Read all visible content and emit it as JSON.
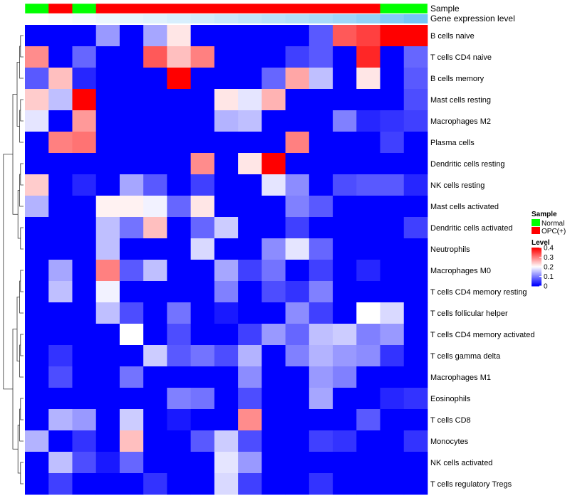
{
  "chart_data": {
    "type": "heatmap",
    "annotation_tracks": [
      "Sample",
      "Gene expression level"
    ],
    "rows": [
      "B cells naive",
      "T cells CD4 naive",
      "B cells memory",
      "Mast cells resting",
      "Macrophages M2",
      "Plasma cells",
      "Dendritic cells resting",
      "NK cells resting",
      "Mast cells activated",
      "Dendritic cells activated",
      "Neutrophils",
      "Macrophages M0",
      "T cells CD4 memory resting",
      "T cells follicular helper",
      "T cells CD4 memory activated",
      "T cells gamma delta",
      "Macrophages M1",
      "Eosinophils",
      "T cells CD8",
      "Monocytes",
      "NK cells activated",
      "T cells regulatory  Tregs"
    ],
    "sample_groups": [
      "Normal",
      "OPC(+)",
      "Normal",
      "OPC(+)",
      "OPC(+)",
      "OPC(+)",
      "OPC(+)",
      "OPC(+)",
      "OPC(+)",
      "OPC(+)",
      "OPC(+)",
      "OPC(+)",
      "OPC(+)",
      "OPC(+)",
      "OPC(+)",
      "Normal",
      "Normal"
    ],
    "expression_level": [
      0.0,
      0.04,
      0.08,
      0.12,
      0.16,
      0.2,
      0.25,
      0.3,
      0.35,
      0.4,
      0.45,
      0.5,
      0.55,
      0.62,
      0.7,
      0.8,
      0.9
    ],
    "values": [
      [
        0.0,
        0.0,
        0.0,
        0.12,
        0.0,
        0.13,
        0.22,
        0.0,
        0.0,
        0.0,
        0.0,
        0.0,
        0.07,
        0.33,
        0.35,
        0.4,
        0.4
      ],
      [
        0.29,
        0.0,
        0.08,
        0.0,
        0.0,
        0.33,
        0.25,
        0.3,
        0.0,
        0.0,
        0.0,
        0.05,
        0.07,
        0.0,
        0.37,
        0.0,
        0.08
      ],
      [
        0.07,
        0.25,
        0.03,
        0.0,
        0.0,
        0.0,
        0.4,
        0.0,
        0.0,
        0.0,
        0.08,
        0.27,
        0.15,
        0.0,
        0.22,
        0.0,
        0.07
      ],
      [
        0.24,
        0.15,
        0.4,
        0.0,
        0.0,
        0.0,
        0.0,
        0.0,
        0.22,
        0.18,
        0.26,
        0.0,
        0.0,
        0.0,
        0.0,
        0.0,
        0.06
      ],
      [
        0.18,
        0.0,
        0.28,
        0.0,
        0.0,
        0.0,
        0.0,
        0.0,
        0.14,
        0.15,
        0.0,
        0.0,
        0.0,
        0.1,
        0.03,
        0.04,
        0.05
      ],
      [
        0.0,
        0.3,
        0.31,
        0.0,
        0.0,
        0.0,
        0.0,
        0.0,
        0.0,
        0.0,
        0.0,
        0.3,
        0.0,
        0.0,
        0.0,
        0.05,
        0.0
      ],
      [
        0.0,
        0.0,
        0.0,
        0.0,
        0.0,
        0.0,
        0.0,
        0.29,
        0.0,
        0.22,
        0.4,
        0.0,
        0.0,
        0.0,
        0.0,
        0.0,
        0.0
      ],
      [
        0.24,
        0.0,
        0.03,
        0.0,
        0.13,
        0.07,
        0.0,
        0.05,
        0.0,
        0.0,
        0.18,
        0.11,
        0.0,
        0.06,
        0.07,
        0.07,
        0.03
      ],
      [
        0.14,
        0.0,
        0.0,
        0.21,
        0.21,
        0.19,
        0.08,
        0.22,
        0.0,
        0.0,
        0.0,
        0.1,
        0.07,
        0.0,
        0.0,
        0.0,
        0.0
      ],
      [
        0.0,
        0.0,
        0.0,
        0.15,
        0.09,
        0.25,
        0.0,
        0.08,
        0.16,
        0.0,
        0.0,
        0.05,
        0.0,
        0.0,
        0.0,
        0.0,
        0.05
      ],
      [
        0.0,
        0.0,
        0.0,
        0.15,
        0.0,
        0.0,
        0.0,
        0.17,
        0.0,
        0.0,
        0.11,
        0.18,
        0.08,
        0.0,
        0.0,
        0.0,
        0.0
      ],
      [
        0.0,
        0.13,
        0.0,
        0.3,
        0.07,
        0.15,
        0.0,
        0.0,
        0.13,
        0.05,
        0.09,
        0.0,
        0.05,
        0.0,
        0.03,
        0.0,
        0.0
      ],
      [
        0.0,
        0.15,
        0.0,
        0.19,
        0.0,
        0.0,
        0.0,
        0.0,
        0.1,
        0.0,
        0.06,
        0.04,
        0.1,
        0.0,
        0.0,
        0.0,
        0.0
      ],
      [
        0.0,
        0.0,
        0.0,
        0.15,
        0.06,
        0.0,
        0.09,
        0.0,
        0.02,
        0.0,
        0.0,
        0.11,
        0.05,
        0.0,
        0.2,
        0.17,
        0.0
      ],
      [
        0.0,
        0.0,
        0.0,
        0.0,
        0.2,
        0.0,
        0.06,
        0.0,
        0.0,
        0.05,
        0.12,
        0.08,
        0.15,
        0.16,
        0.1,
        0.12,
        0.0
      ],
      [
        0.0,
        0.04,
        0.0,
        0.0,
        0.0,
        0.16,
        0.07,
        0.09,
        0.06,
        0.14,
        0.0,
        0.1,
        0.14,
        0.12,
        0.11,
        0.04,
        0.0
      ],
      [
        0.0,
        0.06,
        0.0,
        0.0,
        0.09,
        0.0,
        0.0,
        0.0,
        0.0,
        0.11,
        0.0,
        0.0,
        0.12,
        0.1,
        0.0,
        0.0,
        0.0
      ],
      [
        0.0,
        0.0,
        0.0,
        0.0,
        0.0,
        0.0,
        0.1,
        0.09,
        0.0,
        0.06,
        0.0,
        0.0,
        0.13,
        0.0,
        0.0,
        0.03,
        0.04
      ],
      [
        0.0,
        0.14,
        0.12,
        0.0,
        0.16,
        0.0,
        0.02,
        0.0,
        0.0,
        0.29,
        0.0,
        0.0,
        0.0,
        0.0,
        0.07,
        0.0,
        0.0
      ],
      [
        0.14,
        0.0,
        0.04,
        0.0,
        0.25,
        0.0,
        0.0,
        0.07,
        0.16,
        0.06,
        0.0,
        0.0,
        0.05,
        0.04,
        0.0,
        0.0,
        0.04
      ],
      [
        0.0,
        0.15,
        0.06,
        0.02,
        0.08,
        0.0,
        0.0,
        0.0,
        0.18,
        0.12,
        0.0,
        0.0,
        0.0,
        0.0,
        0.0,
        0.0,
        0.0
      ],
      [
        0.0,
        0.05,
        0.0,
        0.0,
        0.0,
        0.04,
        0.0,
        0.0,
        0.17,
        0.05,
        0.0,
        0.0,
        0.04,
        0.0,
        0.0,
        0.0,
        0.0
      ]
    ],
    "color_scale": {
      "low": "#0000FF",
      "mid": "#FFFFFF",
      "high": "#FF0000",
      "min": 0,
      "mid_value": 0.2,
      "max": 0.4
    },
    "legend": {
      "sample_title": "Sample",
      "sample_items": [
        {
          "label": "Normal",
          "color": "#00FF00"
        },
        {
          "label": "OPC(+)",
          "color": "#FF0000"
        }
      ],
      "level_title": "Level",
      "level_ticks": [
        "0.4",
        "0.3",
        "0.2",
        "0.1",
        "0"
      ],
      "level_tick_values": [
        0.4,
        0.3,
        0.2,
        0.1,
        0
      ]
    }
  }
}
